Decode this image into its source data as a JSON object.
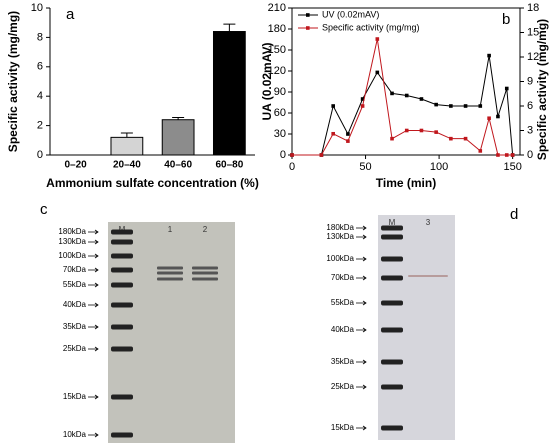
{
  "chart_data": [
    {
      "type": "bar",
      "panel": "a",
      "title": "a",
      "x_label": "Ammonium sulfate concentration (%)",
      "y_label": "Specific activity (mg/mg)",
      "categories": [
        "0–20",
        "20–40",
        "40–60",
        "60–80"
      ],
      "values": [
        0,
        1.2,
        2.4,
        8.4
      ],
      "errors": [
        0,
        0.3,
        0.15,
        0.5
      ],
      "colors": [
        "#ffffff",
        "#d4d4d4",
        "#8c8c8c",
        "#000000"
      ],
      "ylim": [
        0,
        10
      ],
      "yticks": [
        0,
        2,
        4,
        6,
        8,
        10
      ]
    },
    {
      "type": "line",
      "panel": "b",
      "title": "b",
      "x_label": "Time (min)",
      "y_label": "UA (0.02mAV)",
      "y2_label": "Specific activity (mg/mg)",
      "x": [
        0,
        20,
        28,
        38,
        48,
        58,
        68,
        78,
        88,
        98,
        108,
        118,
        128,
        134,
        140,
        146,
        150
      ],
      "series": [
        {
          "name": "UV (0.02mAV)",
          "color": "#000000",
          "values": [
            0,
            0,
            70,
            30,
            80,
            118,
            88,
            85,
            80,
            72,
            70,
            70,
            70,
            142,
            55,
            95,
            0
          ]
        },
        {
          "name": "Specific activity (mg/mg)",
          "color": "#c0171d",
          "axis": "y2",
          "values": [
            0,
            0,
            2.6,
            1.7,
            6.0,
            14.2,
            2.0,
            3.0,
            3.0,
            2.8,
            2.0,
            2.0,
            0.5,
            4.5,
            0,
            0,
            0
          ]
        }
      ],
      "xlim": [
        0,
        155
      ],
      "xticks": [
        0,
        50,
        100,
        150
      ],
      "ylim": [
        0,
        210
      ],
      "yticks": [
        0,
        30,
        60,
        90,
        120,
        150,
        180,
        210
      ],
      "y2lim": [
        0,
        18
      ],
      "y2ticks": [
        0,
        3,
        6,
        9,
        12,
        15,
        18
      ],
      "legend": "upper left"
    }
  ],
  "gels": [
    {
      "panel": "c",
      "lanes": [
        "M",
        "1",
        "2"
      ],
      "markers": [
        "180kDa",
        "130kDa",
        "100kDa",
        "70kDa",
        "55kDa",
        "40kDa",
        "35kDa",
        "25kDa",
        "15kDa",
        "10kDa"
      ]
    },
    {
      "panel": "d",
      "lanes": [
        "M",
        "3"
      ],
      "markers": [
        "180kDa",
        "130kDa",
        "100kDa",
        "70kDa",
        "55kDa",
        "40kDa",
        "35kDa",
        "25kDa",
        "15kDa"
      ]
    }
  ]
}
